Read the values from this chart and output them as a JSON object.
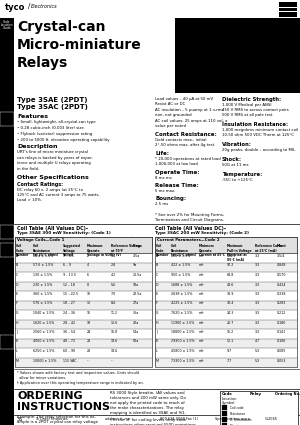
{
  "bg_color": "#ffffff"
}
